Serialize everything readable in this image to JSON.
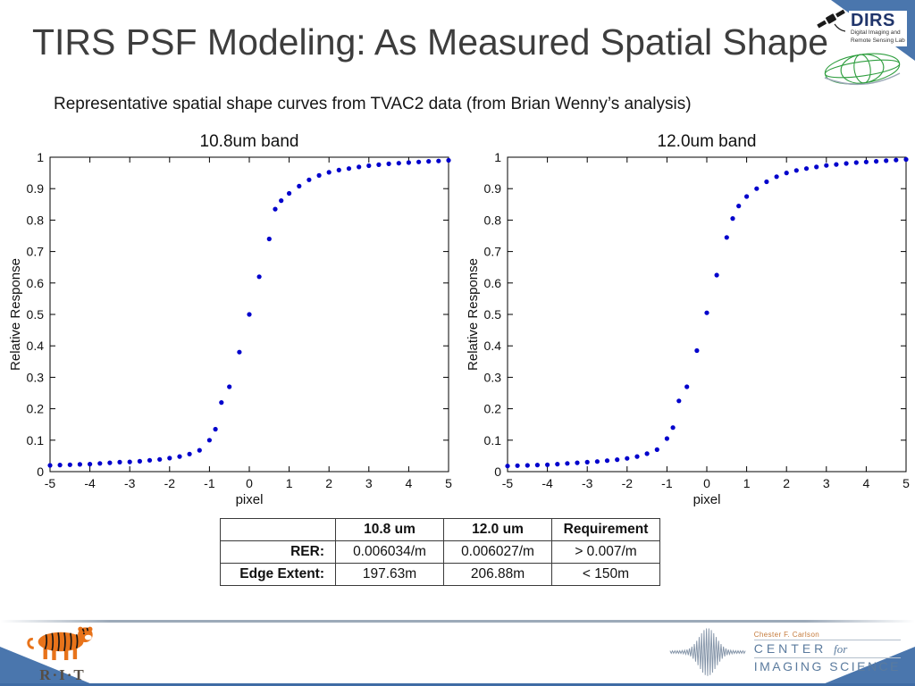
{
  "slide": {
    "title": "TIRS PSF Modeling: As Measured Spatial Shape",
    "subtitle": "Representative spatial shape curves from TVAC2 data (from Brian Wenny’s analysis)"
  },
  "logos": {
    "dirs": {
      "title": "DIRS",
      "subtitle1": "Digital Imaging and",
      "subtitle2": "Remote Sensing Lab"
    },
    "rit": {
      "wordmark": "R·I·T"
    },
    "cis": {
      "line1": "Chester F. Carlson",
      "center": "CENTER",
      "for": "for",
      "line3": "IMAGING SCIENCE"
    }
  },
  "table": {
    "col_headers": [
      "10.8 um",
      "12.0 um",
      "Requirement"
    ],
    "rows": [
      {
        "label": "RER:",
        "values": [
          "0.006034/m",
          "0.006027/m",
          "> 0.007/m"
        ]
      },
      {
        "label": "Edge Extent:",
        "values": [
          "197.63m",
          "206.88m",
          "< 150m"
        ]
      }
    ]
  },
  "colors": {
    "marker": "#0000cc",
    "corner_triangle": "#4a76ad",
    "footer_line": "#97a5b5"
  },
  "chart_data": [
    {
      "type": "scatter",
      "title": "10.8um band",
      "xlabel": "pixel",
      "ylabel": "Relative Response",
      "xlim": [
        -5,
        5
      ],
      "ylim": [
        0,
        1
      ],
      "xticks": [
        -5,
        -4,
        -3,
        -2,
        -1,
        0,
        1,
        2,
        3,
        4,
        5
      ],
      "yticks": [
        0,
        0.1,
        0.2,
        0.3,
        0.4,
        0.5,
        0.6,
        0.7,
        0.8,
        0.9,
        1
      ],
      "grid": false,
      "marker_color": "#0000cc",
      "x": [
        -5,
        -4.75,
        -4.5,
        -4.25,
        -4,
        -3.75,
        -3.5,
        -3.25,
        -3,
        -2.75,
        -2.5,
        -2.25,
        -2,
        -1.75,
        -1.5,
        -1.25,
        -1,
        -0.85,
        -0.7,
        -0.5,
        -0.25,
        0,
        0.25,
        0.5,
        0.65,
        0.8,
        1,
        1.25,
        1.5,
        1.75,
        2,
        2.25,
        2.5,
        2.75,
        3,
        3.25,
        3.5,
        3.75,
        4,
        4.25,
        4.5,
        4.75,
        5
      ],
      "y": [
        0.02,
        0.021,
        0.022,
        0.023,
        0.024,
        0.026,
        0.028,
        0.03,
        0.031,
        0.033,
        0.036,
        0.039,
        0.043,
        0.048,
        0.056,
        0.068,
        0.1,
        0.135,
        0.22,
        0.27,
        0.38,
        0.5,
        0.62,
        0.74,
        0.835,
        0.862,
        0.885,
        0.908,
        0.928,
        0.942,
        0.952,
        0.959,
        0.964,
        0.969,
        0.973,
        0.976,
        0.979,
        0.981,
        0.983,
        0.985,
        0.987,
        0.988,
        0.99
      ]
    },
    {
      "type": "scatter",
      "title": "12.0um band",
      "xlabel": "pixel",
      "ylabel": "Relative Response",
      "xlim": [
        -5,
        5
      ],
      "ylim": [
        0,
        1
      ],
      "xticks": [
        -5,
        -4,
        -3,
        -2,
        -1,
        0,
        1,
        2,
        3,
        4,
        5
      ],
      "yticks": [
        0,
        0.1,
        0.2,
        0.3,
        0.4,
        0.5,
        0.6,
        0.7,
        0.8,
        0.9,
        1
      ],
      "grid": false,
      "marker_color": "#0000cc",
      "x": [
        -5,
        -4.75,
        -4.5,
        -4.25,
        -4,
        -3.75,
        -3.5,
        -3.25,
        -3,
        -2.75,
        -2.5,
        -2.25,
        -2,
        -1.75,
        -1.5,
        -1.25,
        -1,
        -0.85,
        -0.7,
        -0.5,
        -0.25,
        0,
        0.25,
        0.5,
        0.65,
        0.8,
        1,
        1.25,
        1.5,
        1.75,
        2,
        2.25,
        2.5,
        2.75,
        3,
        3.25,
        3.5,
        3.75,
        4,
        4.25,
        4.5,
        4.75,
        5
      ],
      "y": [
        0.018,
        0.019,
        0.02,
        0.021,
        0.022,
        0.024,
        0.026,
        0.028,
        0.03,
        0.032,
        0.035,
        0.038,
        0.042,
        0.048,
        0.057,
        0.07,
        0.105,
        0.14,
        0.225,
        0.27,
        0.385,
        0.505,
        0.625,
        0.745,
        0.805,
        0.845,
        0.875,
        0.9,
        0.922,
        0.938,
        0.95,
        0.958,
        0.964,
        0.969,
        0.974,
        0.977,
        0.98,
        0.983,
        0.985,
        0.987,
        0.989,
        0.991,
        0.993
      ]
    }
  ]
}
